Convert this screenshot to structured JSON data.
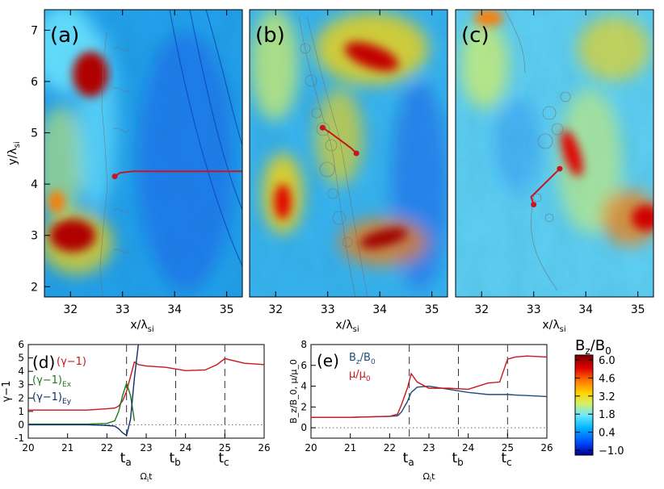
{
  "colors": {
    "red": "#c8161e",
    "green": "#1e7a1e",
    "navy": "#0f2f66",
    "steel": "#1f4e79",
    "gray": "#6e6e6e",
    "colormap": [
      "#00008f",
      "#0046ff",
      "#00b4ff",
      "#6fe8ff",
      "#d8f060",
      "#ffd400",
      "#ff7a00",
      "#e00000",
      "#7a0000"
    ]
  },
  "panels": [
    {
      "label": "(a)"
    },
    {
      "label": "(b)"
    },
    {
      "label": "(c)"
    }
  ],
  "top_axes": {
    "xlabel_main": "x/λ",
    "xlabel_sub": "si",
    "ylabel_main": "y/λ",
    "ylabel_sub": "si"
  },
  "bottom_axes": {
    "xlabel_main": "Ω",
    "xlabel_sub": "i",
    "xlabel_tail": "t",
    "d_ylabel": "γ−1",
    "e_ylabel": "B_z/B_0, μ/μ_0"
  },
  "legend_d": {
    "label": "(d)",
    "items": [
      {
        "main": "(γ−1)",
        "sub": "",
        "color": "#c8161e"
      },
      {
        "main": "(γ−1)",
        "sub": "Ex",
        "color": "#1e7a1e"
      },
      {
        "main": "(γ−1)",
        "sub": "Ey",
        "color": "#0f2f66"
      }
    ]
  },
  "legend_e": {
    "label": "(e)",
    "items": [
      {
        "main": "B",
        "sub": "z",
        "tail": "/B",
        "sub2": "0",
        "color": "#1f4e79"
      },
      {
        "main": "μ/μ",
        "sub": "0",
        "tail": "",
        "sub2": "",
        "color": "#c8161e"
      }
    ]
  },
  "time_markers": [
    {
      "label": "t",
      "sub": "a",
      "value": 22.5
    },
    {
      "label": "t",
      "sub": "b",
      "value": 23.75
    },
    {
      "label": "t",
      "sub": "c",
      "value": 25.0
    }
  ],
  "colorbar": {
    "title_main": "B",
    "title_sub": "z",
    "title_tail": "/B",
    "title_sub2": "0",
    "ticks": [
      "6.0",
      "4.6",
      "3.2",
      "1.8",
      "0.4",
      "−1.0"
    ],
    "range": [
      -1.0,
      6.0
    ]
  },
  "chart_data": [
    {
      "type": "heatmap",
      "panel": "(a)",
      "xlim": [
        31.5,
        35.3
      ],
      "ylim": [
        1.8,
        7.4
      ],
      "xticks": [
        32,
        33,
        34,
        35
      ],
      "yticks": [
        2,
        3,
        4,
        5,
        6,
        7
      ],
      "xlabel": "x/λsi",
      "ylabel": "y/λsi",
      "trajectory": {
        "x": [
          32.85,
          32.95,
          33.2,
          34.0,
          35.3
        ],
        "y": [
          4.15,
          4.22,
          4.25,
          4.25,
          4.25
        ]
      }
    },
    {
      "type": "heatmap",
      "panel": "(b)",
      "xlim": [
        31.5,
        35.3
      ],
      "ylim": [
        1.8,
        7.4
      ],
      "xticks": [
        32,
        33,
        34,
        35
      ],
      "xlabel": "x/λsi",
      "trajectory": {
        "x": [
          32.9,
          33.05,
          33.25,
          33.45,
          33.55
        ],
        "y": [
          5.1,
          5.0,
          4.85,
          4.7,
          4.6
        ]
      }
    },
    {
      "type": "heatmap",
      "panel": "(c)",
      "xlim": [
        31.5,
        35.3
      ],
      "ylim": [
        1.8,
        7.4
      ],
      "xticks": [
        32,
        33,
        34,
        35
      ],
      "xlabel": "x/λsi",
      "trajectory": {
        "x": [
          33.0,
          32.95,
          33.1,
          33.3,
          33.5
        ],
        "y": [
          3.6,
          3.75,
          3.9,
          4.1,
          4.3
        ]
      }
    },
    {
      "type": "line",
      "panel": "(d)",
      "xlim": [
        20,
        26
      ],
      "ylim": [
        -1,
        6
      ],
      "xticks": [
        20,
        21,
        22,
        23,
        24,
        25,
        26
      ],
      "xtick_labels": [
        "20",
        "21",
        "22",
        "23",
        "24",
        "25",
        "26"
      ],
      "yticks": [
        -1,
        0,
        1,
        2,
        3,
        4,
        5,
        6
      ],
      "xlabel": "Ωit",
      "ylabel": "γ−1",
      "x": [
        20.0,
        20.5,
        21.0,
        21.5,
        22.0,
        22.2,
        22.3,
        22.4,
        22.5,
        22.6,
        22.7,
        22.8,
        23.0,
        23.5,
        24.0,
        24.5,
        24.8,
        25.0,
        25.5,
        26.0
      ],
      "series": [
        {
          "name": "(γ−1)",
          "values": [
            1.1,
            1.1,
            1.1,
            1.1,
            1.2,
            1.25,
            1.4,
            1.8,
            2.5,
            3.6,
            4.7,
            4.5,
            4.4,
            4.3,
            4.05,
            4.1,
            4.5,
            4.95,
            4.6,
            4.5
          ]
        },
        {
          "name": "(γ−1)Ex",
          "values": [
            0.05,
            0.05,
            0.05,
            0.05,
            0.1,
            0.3,
            1.0,
            2.2,
            3.1,
            2.2,
            0.3,
            null,
            null,
            null,
            null,
            null,
            null,
            null,
            null,
            null
          ]
        },
        {
          "name": "(γ−1)Ey",
          "values": [
            0.0,
            0.0,
            0.0,
            0.0,
            -0.05,
            -0.1,
            -0.3,
            -0.6,
            -0.8,
            0.4,
            3.5,
            6.0,
            null,
            null,
            null,
            null,
            null,
            null,
            null,
            null
          ]
        }
      ]
    },
    {
      "type": "line",
      "panel": "(e)",
      "xlim": [
        20,
        26
      ],
      "ylim": [
        -1,
        8
      ],
      "xticks": [
        20,
        21,
        22,
        23,
        24,
        25,
        26
      ],
      "xtick_labels": [
        "20",
        "21",
        "22",
        "23",
        "24",
        "25",
        "26"
      ],
      "yticks": [
        0,
        2,
        4,
        6,
        8
      ],
      "xlabel": "Ωit",
      "ylabel": "Bz/B0, μ/μ0",
      "x": [
        20.0,
        20.5,
        21.0,
        21.5,
        22.0,
        22.2,
        22.3,
        22.45,
        22.55,
        22.7,
        23.0,
        23.5,
        24.0,
        24.5,
        24.8,
        25.0,
        25.2,
        25.5,
        26.0
      ],
      "series": [
        {
          "name": "Bz/B0",
          "values": [
            1.0,
            1.0,
            1.0,
            1.05,
            1.1,
            1.15,
            1.5,
            2.5,
            3.4,
            3.9,
            4.0,
            3.7,
            3.4,
            3.2,
            3.2,
            3.2,
            3.15,
            3.1,
            3.0
          ]
        },
        {
          "name": "μ/μ0",
          "values": [
            1.0,
            1.0,
            1.0,
            1.05,
            1.1,
            1.3,
            2.2,
            3.8,
            5.2,
            4.4,
            3.8,
            3.8,
            3.7,
            4.3,
            4.4,
            6.6,
            6.8,
            6.9,
            6.8
          ]
        }
      ]
    }
  ]
}
